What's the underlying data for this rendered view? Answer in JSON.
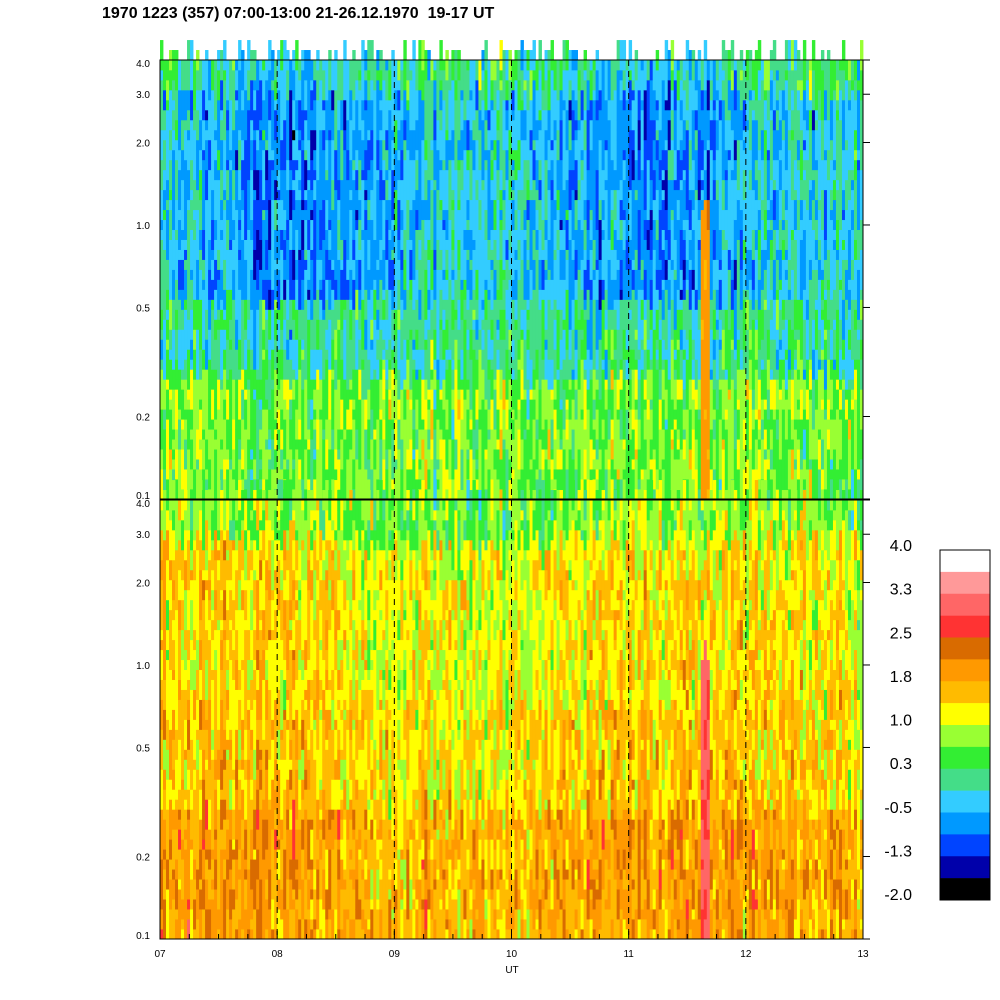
{
  "title": "1970 1223 (357) 07:00-13:00 21-26.12.1970  19-17 UT",
  "chart_data": {
    "type": "heatmap",
    "xlabel": "UT",
    "x_ticks": [
      "07",
      "08",
      "09",
      "10",
      "11",
      "12",
      "13"
    ],
    "xlim": [
      7,
      13
    ],
    "x_minor_step_hours": 0.25,
    "dashed_time_markers": [
      8,
      9,
      10,
      11,
      12
    ],
    "y_scale": "log",
    "y_ticks": [
      0.1,
      0.2,
      0.5,
      1.0,
      2.0,
      3.0,
      4.0
    ],
    "y_tick_labels": [
      "0.1",
      "0.2",
      "0.5",
      "1.0",
      "2.0",
      "3.0",
      "4.0"
    ],
    "ylim": [
      0.1,
      4.0
    ],
    "panels": [
      {
        "id": "upper",
        "dominant_levels_by_band": [
          {
            "y_range": [
              0.1,
              0.3
            ],
            "levels": "0.3 to 1.0",
            "colors": "green / yellow-green / yellow"
          },
          {
            "y_range": [
              0.3,
              0.6
            ],
            "levels": "-0.5 to 0.3",
            "colors": "teal / green"
          },
          {
            "y_range": [
              0.6,
              4.0
            ],
            "levels": "-1.3 to 0.3",
            "colors": "cyan / blue / green"
          }
        ],
        "notable_features": [
          {
            "x": 11.65,
            "y_range": [
              0.1,
              1.0
            ],
            "levels": "1.4 to 2.2",
            "colors": "orange"
          }
        ]
      },
      {
        "id": "lower",
        "dominant_levels_by_band": [
          {
            "y_range": [
              0.1,
              0.3
            ],
            "levels": "1.4 to 2.2",
            "colors": "orange / dark orange"
          },
          {
            "y_range": [
              0.3,
              3.0
            ],
            "levels": "0.6 to 1.8",
            "colors": "yellow / amber / orange"
          },
          {
            "y_range": [
              3.0,
              4.0
            ],
            "levels": "0.3 to 1.0",
            "colors": "yellow / green"
          }
        ],
        "notable_features": [
          {
            "x": 11.65,
            "y_range": [
              0.1,
              1.0
            ],
            "levels": "2.5 to 3.3",
            "colors": "red"
          }
        ]
      }
    ],
    "colorbar": {
      "tick_labels": [
        "4.0",
        "3.3",
        "2.5",
        "1.8",
        "1.0",
        "0.3",
        "-0.5",
        "-1.3",
        "-2.0"
      ],
      "range": [
        -2.0,
        4.0
      ],
      "colors": [
        "#ffffff",
        "#ff9999",
        "#ff6666",
        "#ff3333",
        "#d96b00",
        "#ff9900",
        "#ffbb00",
        "#ffff00",
        "#99ff33",
        "#33ee33",
        "#44dd88",
        "#33ccff",
        "#0099ff",
        "#0044ff",
        "#0000aa",
        "#000000"
      ]
    }
  }
}
